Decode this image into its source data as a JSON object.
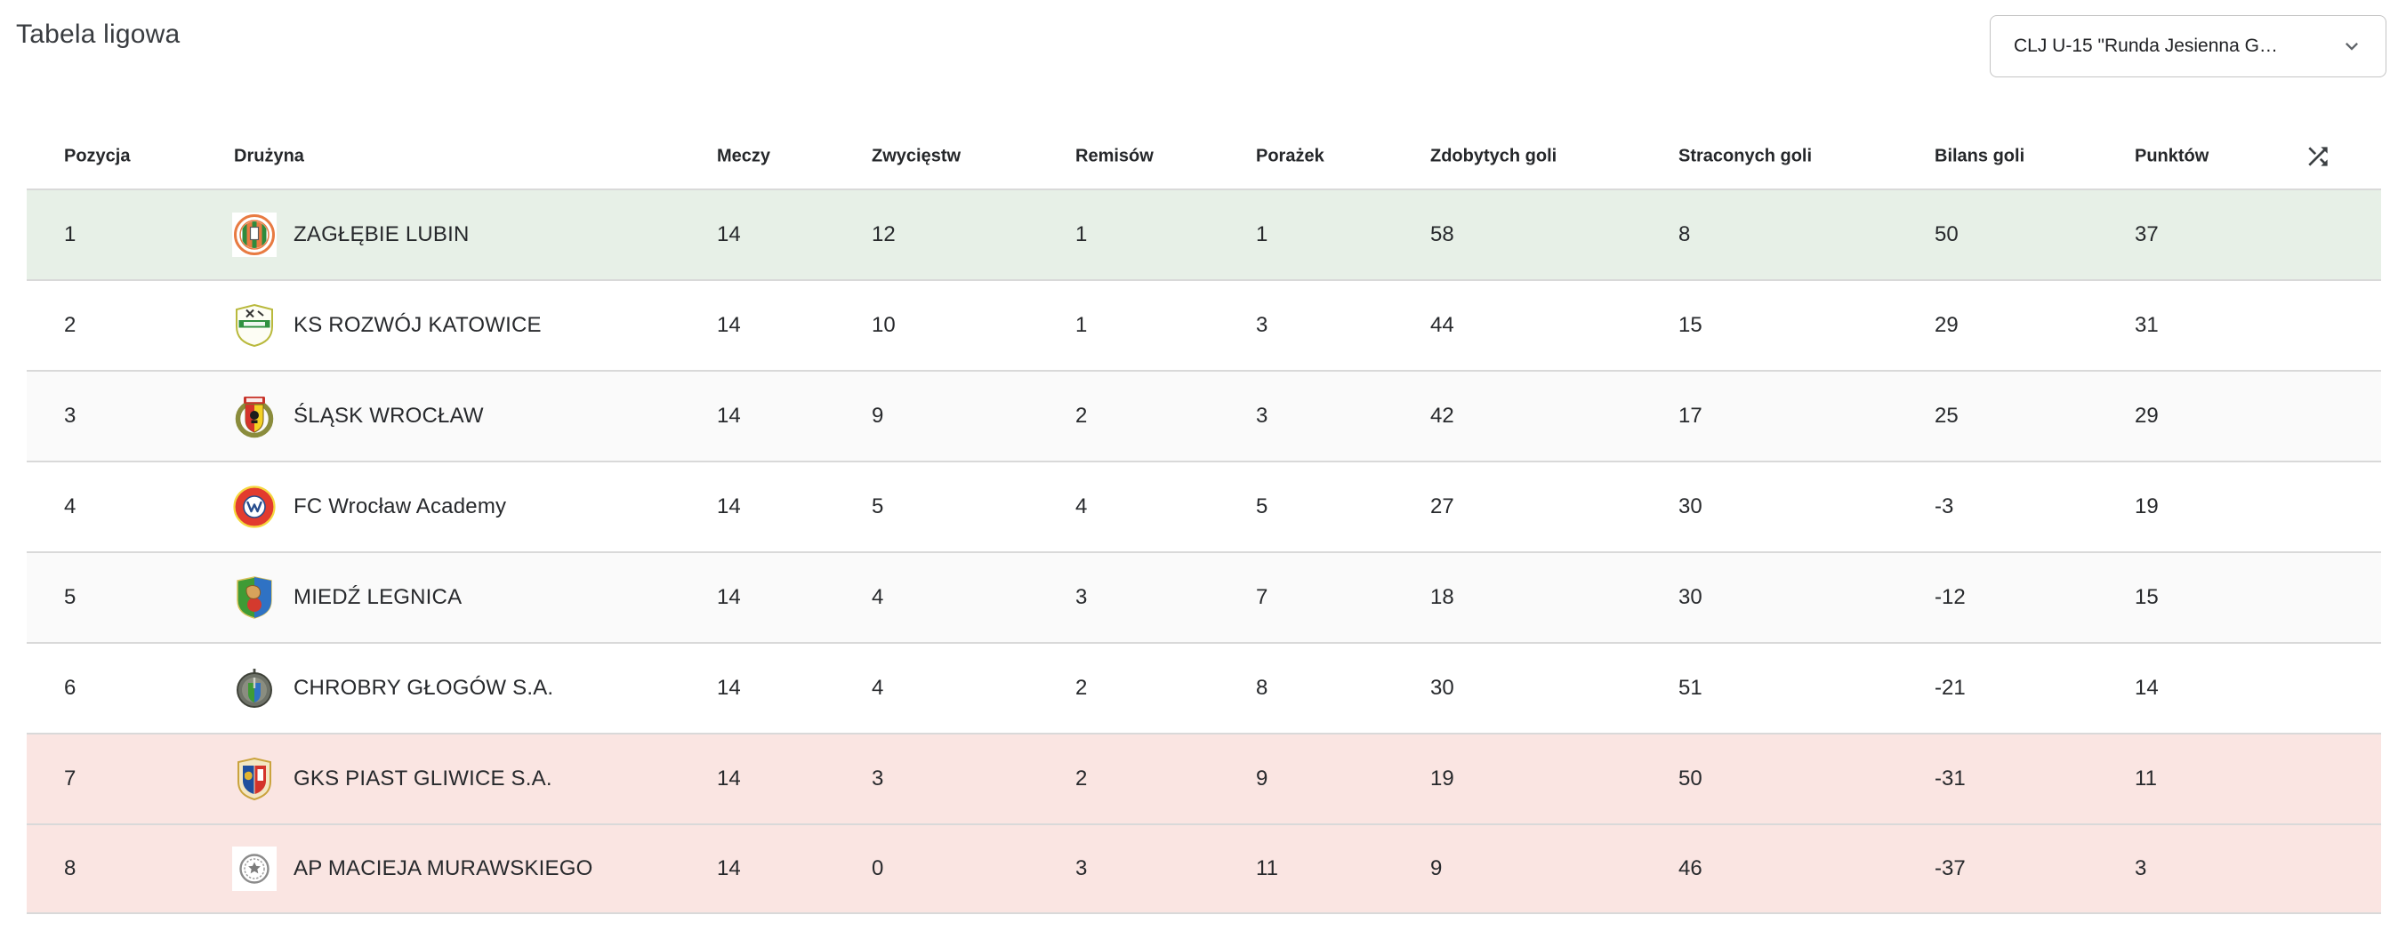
{
  "title": "Tabela ligowa",
  "season_select": {
    "value": "CLJ U-15 \"Runda Jesienna G…",
    "icon": "chevron-down-icon"
  },
  "table": {
    "headers": {
      "position": "Pozycja",
      "team": "Drużyna",
      "matches": "Meczy",
      "wins": "Zwycięstw",
      "draws": "Remisów",
      "losses": "Porażek",
      "goals_for": "Zdobytych goli",
      "goals_against": "Straconych goli",
      "goal_diff": "Bilans goli",
      "points": "Punktów"
    },
    "header_icon": "shuffle-icon",
    "rows": [
      {
        "position": "1",
        "team": "ZAGŁĘBIE LUBIN",
        "crest": "zaglebie-lubin-crest",
        "matches": "14",
        "wins": "12",
        "draws": "1",
        "losses": "1",
        "goals_for": "58",
        "goals_against": "8",
        "goal_diff": "50",
        "points": "37",
        "status": "promotion"
      },
      {
        "position": "2",
        "team": "KS ROZWÓJ KATOWICE",
        "crest": "rozwoj-katowice-crest",
        "matches": "14",
        "wins": "10",
        "draws": "1",
        "losses": "3",
        "goals_for": "44",
        "goals_against": "15",
        "goal_diff": "29",
        "points": "31",
        "status": ""
      },
      {
        "position": "3",
        "team": "ŚLĄSK WROCŁAW",
        "crest": "slask-wroclaw-crest",
        "matches": "14",
        "wins": "9",
        "draws": "2",
        "losses": "3",
        "goals_for": "42",
        "goals_against": "17",
        "goal_diff": "25",
        "points": "29",
        "status": "alt"
      },
      {
        "position": "4",
        "team": "FC Wrocław Academy",
        "crest": "fc-wroclaw-academy-crest",
        "matches": "14",
        "wins": "5",
        "draws": "4",
        "losses": "5",
        "goals_for": "27",
        "goals_against": "30",
        "goal_diff": "-3",
        "points": "19",
        "status": ""
      },
      {
        "position": "5",
        "team": "MIEDŹ LEGNICA",
        "crest": "miedz-legnica-crest",
        "matches": "14",
        "wins": "4",
        "draws": "3",
        "losses": "7",
        "goals_for": "18",
        "goals_against": "30",
        "goal_diff": "-12",
        "points": "15",
        "status": "alt"
      },
      {
        "position": "6",
        "team": "CHROBRY GŁOGÓW S.A.",
        "crest": "chrobry-glogow-crest",
        "matches": "14",
        "wins": "4",
        "draws": "2",
        "losses": "8",
        "goals_for": "30",
        "goals_against": "51",
        "goal_diff": "-21",
        "points": "14",
        "status": ""
      },
      {
        "position": "7",
        "team": "GKS PIAST GLIWICE S.A.",
        "crest": "piast-gliwice-crest",
        "matches": "14",
        "wins": "3",
        "draws": "2",
        "losses": "9",
        "goals_for": "19",
        "goals_against": "50",
        "goal_diff": "-31",
        "points": "11",
        "status": "relegation"
      },
      {
        "position": "8",
        "team": "AP MACIEJA MURAWSKIEGO",
        "crest": "ap-macieja-murawskiego-crest",
        "matches": "14",
        "wins": "0",
        "draws": "3",
        "losses": "11",
        "goals_for": "9",
        "goals_against": "46",
        "goal_diff": "-37",
        "points": "3",
        "status": "relegation"
      }
    ]
  },
  "colors": {
    "promotion_row_bg": "#e7f0e7",
    "relegation_row_bg": "#fae5e2",
    "alt_row_bg": "#fafafa",
    "row_border": "#d9d9d9",
    "text": "#27292c"
  }
}
